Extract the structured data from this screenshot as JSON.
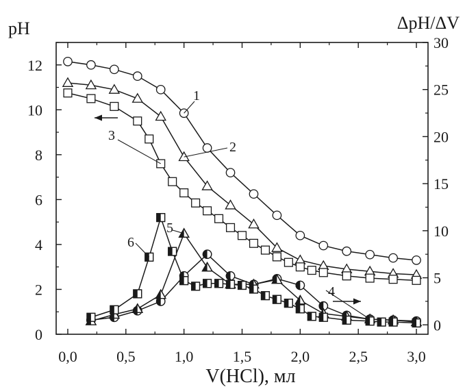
{
  "chart_data": {
    "type": "line",
    "title": "",
    "xlabel": "V(HCl), мл",
    "ylabel_left": "pH",
    "ylabel_right": "ΔpH/ΔV",
    "xlim": [
      -0.1,
      3.1
    ],
    "ylim_left": [
      0,
      13
    ],
    "ylim_right": [
      -1,
      30
    ],
    "x_ticks": [
      0.0,
      0.5,
      1.0,
      1.5,
      2.0,
      2.5,
      3.0
    ],
    "x_tick_labels": [
      "0,0",
      "0,5",
      "1,0",
      "1,5",
      "2,0",
      "2,5",
      "3,0"
    ],
    "y_left_ticks": [
      0,
      2,
      4,
      6,
      8,
      10,
      12
    ],
    "y_left_tick_labels": [
      "0",
      "2",
      "4",
      "6",
      "8",
      "10",
      "12"
    ],
    "y_right_ticks": [
      0,
      5,
      10,
      15,
      20,
      25,
      30
    ],
    "y_right_tick_labels": [
      "0",
      "5",
      "10",
      "15",
      "20",
      "25",
      "30"
    ],
    "grid": false,
    "series": [
      {
        "name": "1",
        "axis": "left",
        "marker": "circle-open",
        "x": [
          0.0,
          0.2,
          0.4,
          0.6,
          0.8,
          1.0,
          1.2,
          1.4,
          1.6,
          1.8,
          2.0,
          2.2,
          2.4,
          2.6,
          2.8,
          3.0
        ],
        "y": [
          12.15,
          12.0,
          11.8,
          11.5,
          10.9,
          9.85,
          8.3,
          7.2,
          6.25,
          5.3,
          4.4,
          3.95,
          3.7,
          3.55,
          3.4,
          3.3
        ]
      },
      {
        "name": "2",
        "axis": "left",
        "marker": "triangle-open",
        "x": [
          0.0,
          0.2,
          0.4,
          0.6,
          0.8,
          1.0,
          1.2,
          1.4,
          1.6,
          1.8,
          2.0,
          2.2,
          2.4,
          2.6,
          2.8,
          3.0
        ],
        "y": [
          11.2,
          11.1,
          10.9,
          10.5,
          9.7,
          7.9,
          6.6,
          5.75,
          4.9,
          3.85,
          3.3,
          3.05,
          2.9,
          2.8,
          2.7,
          2.65
        ]
      },
      {
        "name": "3",
        "axis": "left",
        "marker": "square-open",
        "x": [
          0.0,
          0.2,
          0.4,
          0.6,
          0.7,
          0.8,
          0.9,
          1.0,
          1.1,
          1.2,
          1.3,
          1.4,
          1.5,
          1.6,
          1.7,
          1.8,
          1.9,
          2.0,
          2.1,
          2.2,
          2.4,
          2.6,
          2.8,
          3.0
        ],
        "y": [
          10.75,
          10.5,
          10.15,
          9.5,
          8.7,
          7.6,
          6.8,
          6.3,
          5.85,
          5.5,
          5.15,
          4.75,
          4.4,
          4.05,
          3.75,
          3.45,
          3.2,
          3.0,
          2.85,
          2.75,
          2.6,
          2.5,
          2.45,
          2.4
        ]
      },
      {
        "name": "4",
        "axis": "right",
        "marker": "circle-half",
        "x": [
          0.2,
          0.4,
          0.6,
          0.8,
          1.0,
          1.2,
          1.4,
          1.6,
          1.8,
          2.0,
          2.2,
          2.4,
          2.6,
          2.8,
          3.0
        ],
        "y": [
          0.5,
          0.8,
          1.5,
          2.5,
          5.2,
          7.5,
          5.2,
          4.3,
          4.9,
          4.2,
          2.0,
          1.0,
          0.6,
          0.5,
          0.4
        ]
      },
      {
        "name": "5",
        "axis": "right",
        "marker": "triangle-half",
        "x": [
          0.2,
          0.4,
          0.6,
          0.8,
          1.0,
          1.2,
          1.4,
          1.6,
          1.8,
          2.0,
          2.2,
          2.4,
          2.6,
          2.8,
          3.0
        ],
        "y": [
          0.4,
          1.1,
          1.7,
          3.2,
          9.7,
          6.1,
          4.3,
          4.3,
          4.8,
          2.6,
          1.2,
          0.9,
          0.6,
          0.5,
          0.3
        ]
      },
      {
        "name": "6",
        "axis": "right",
        "marker": "square-half",
        "x": [
          0.2,
          0.4,
          0.6,
          0.7,
          0.8,
          0.9,
          1.0,
          1.1,
          1.2,
          1.3,
          1.4,
          1.5,
          1.6,
          1.7,
          1.8,
          1.9,
          2.0,
          2.1,
          2.2,
          2.4,
          2.6,
          2.7,
          2.8,
          3.0
        ],
        "y": [
          0.8,
          1.6,
          3.3,
          7.2,
          11.4,
          7.8,
          4.7,
          4.1,
          4.4,
          4.4,
          4.3,
          4.2,
          3.8,
          3.1,
          2.7,
          2.3,
          1.7,
          0.9,
          0.8,
          0.5,
          0.4,
          0.3,
          0.3,
          0.2
        ]
      }
    ],
    "annotations": [
      {
        "text": "1",
        "series": "1"
      },
      {
        "text": "2",
        "series": "2"
      },
      {
        "text": "3",
        "series": "3"
      },
      {
        "text": "4",
        "series": "4"
      },
      {
        "text": "5",
        "series": "5"
      },
      {
        "text": "6",
        "series": "6"
      }
    ]
  }
}
